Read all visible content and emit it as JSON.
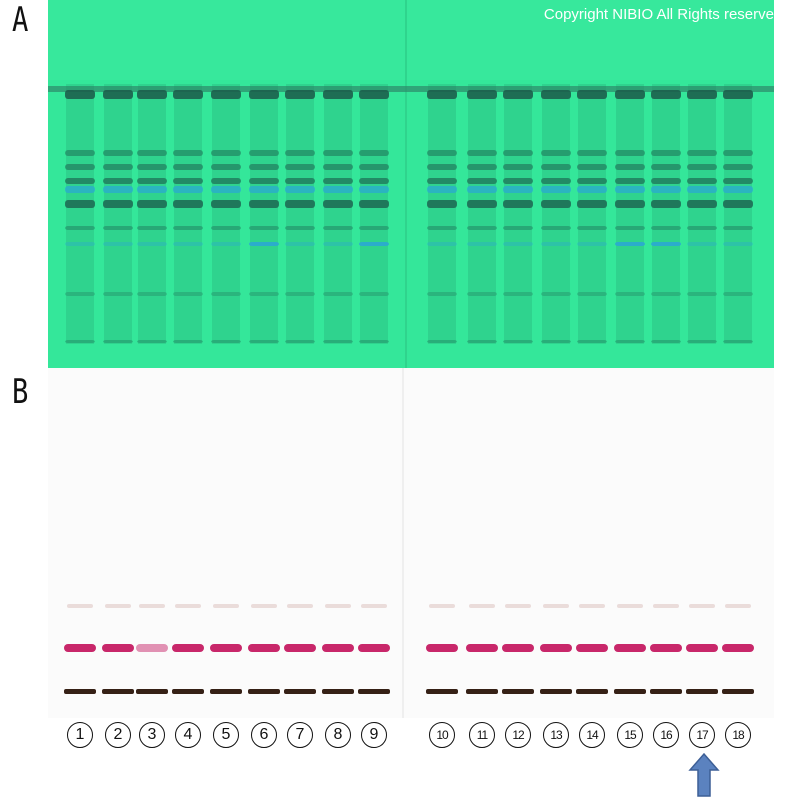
{
  "panels": {
    "a_label": "A",
    "b_label": "B",
    "copyright": "Copyright NIBIO All Rights reserve"
  },
  "lanes": {
    "numbers_left": [
      "1",
      "2",
      "3",
      "4",
      "5",
      "6",
      "7",
      "8",
      "9"
    ],
    "numbers_right": [
      "10",
      "11",
      "12",
      "13",
      "14",
      "15",
      "16",
      "17",
      "18"
    ]
  },
  "marker": {
    "lane": "17",
    "icon": "up-arrow-icon",
    "color": "#5b82bf"
  },
  "colors": {
    "plate_a_background": "#34e79a",
    "plate_a_band": "#1b5a4a",
    "plate_a_blue_band": "#2aa6d6",
    "plate_b_background": "#fbfbfb",
    "plate_b_magenta_band": "#c2105a",
    "plate_b_dark_band": "#2a1408"
  }
}
